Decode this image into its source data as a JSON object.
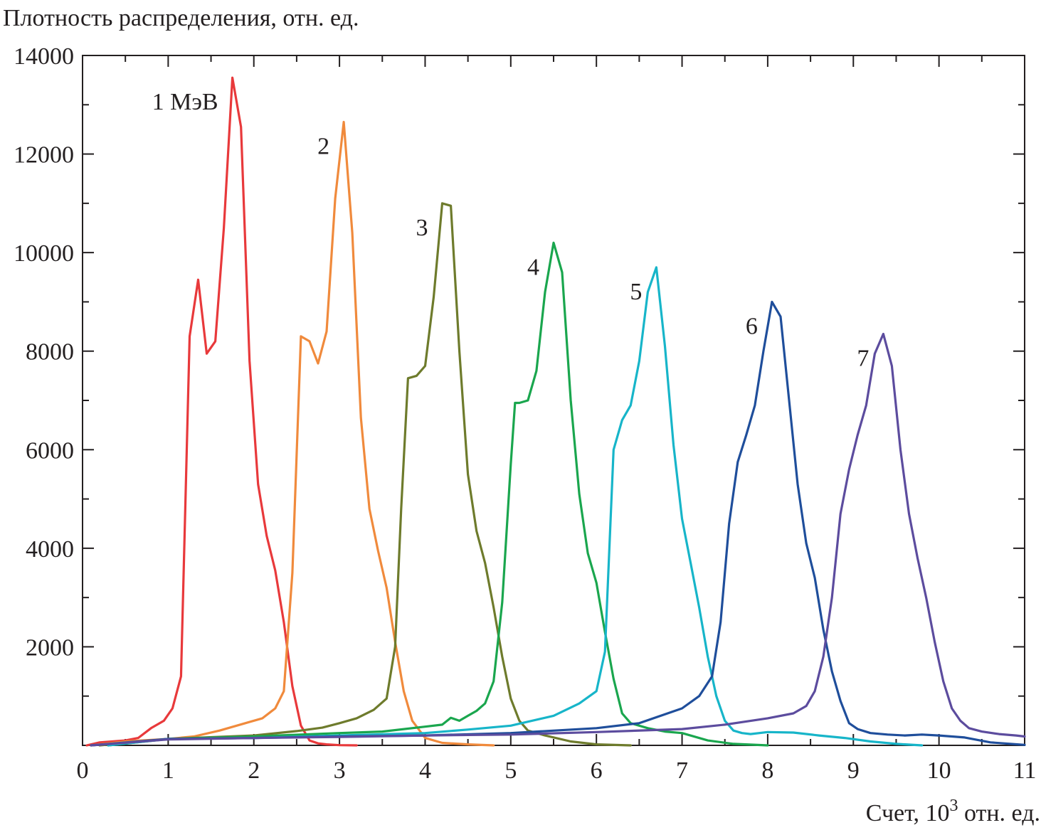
{
  "chart_data": {
    "type": "line",
    "title": "",
    "ylabel": "Плотность распределения, отн. ед.",
    "xlabel_prefix": "Счет, 10",
    "xlabel_exponent": "3",
    "xlabel_suffix": " отн. ед.",
    "xlim": [
      0,
      11
    ],
    "ylim": [
      0,
      14000
    ],
    "x_ticks": [
      "0",
      "1",
      "2",
      "3",
      "4",
      "5",
      "6",
      "7",
      "8",
      "9",
      "10",
      "11"
    ],
    "y_ticks": [
      "2000",
      "4000",
      "6000",
      "8000",
      "10000",
      "12000",
      "14000"
    ],
    "grid": false,
    "series": [
      {
        "name": "1 МэВ",
        "color": "#e8393b",
        "x": [
          0.05,
          0.2,
          0.35,
          0.5,
          0.65,
          0.8,
          0.95,
          1.05,
          1.15,
          1.25,
          1.35,
          1.45,
          1.55,
          1.65,
          1.75,
          1.85,
          1.95,
          2.05,
          2.15,
          2.25,
          2.35,
          2.45,
          2.55,
          2.65,
          2.75,
          2.85,
          3.0,
          3.2
        ],
        "values": [
          0,
          60,
          80,
          100,
          150,
          350,
          500,
          750,
          1400,
          8300,
          9450,
          7950,
          8200,
          10500,
          13550,
          12550,
          7800,
          5300,
          4250,
          3550,
          2500,
          1200,
          400,
          100,
          40,
          20,
          5,
          0
        ]
      },
      {
        "name": "2",
        "color": "#f08a3c",
        "x": [
          0.1,
          0.5,
          1.0,
          1.3,
          1.6,
          1.9,
          2.1,
          2.25,
          2.35,
          2.45,
          2.55,
          2.65,
          2.75,
          2.85,
          2.95,
          3.05,
          3.15,
          3.25,
          3.35,
          3.45,
          3.55,
          3.65,
          3.75,
          3.85,
          4.0,
          4.2,
          4.5,
          4.8
        ],
        "values": [
          0,
          80,
          130,
          180,
          300,
          450,
          550,
          750,
          1100,
          3500,
          8300,
          8200,
          7750,
          8400,
          11100,
          12650,
          10400,
          6650,
          4800,
          3950,
          3200,
          2100,
          1100,
          500,
          150,
          50,
          20,
          0
        ]
      },
      {
        "name": "3",
        "color": "#6e7b2c",
        "x": [
          0.2,
          1.0,
          2.0,
          2.5,
          2.8,
          3.0,
          3.2,
          3.4,
          3.55,
          3.65,
          3.72,
          3.8,
          3.9,
          4.0,
          4.1,
          4.2,
          4.3,
          4.4,
          4.5,
          4.6,
          4.7,
          4.8,
          4.9,
          5.0,
          5.1,
          5.2,
          5.4,
          5.7,
          6.0,
          6.4
        ],
        "values": [
          0,
          130,
          200,
          290,
          360,
          450,
          550,
          720,
          950,
          2000,
          4800,
          7450,
          7500,
          7700,
          9100,
          11000,
          10950,
          8000,
          5500,
          4350,
          3700,
          2800,
          1800,
          950,
          500,
          300,
          200,
          80,
          20,
          0
        ]
      },
      {
        "name": "4",
        "color": "#1aa64e",
        "x": [
          0.3,
          1.0,
          2.0,
          3.0,
          3.5,
          4.0,
          4.2,
          4.3,
          4.4,
          4.5,
          4.6,
          4.7,
          4.8,
          4.9,
          5.0,
          5.05,
          5.1,
          5.2,
          5.3,
          5.4,
          5.5,
          5.6,
          5.7,
          5.8,
          5.9,
          6.0,
          6.1,
          6.2,
          6.3,
          6.4,
          6.6,
          6.8,
          7.0,
          7.3,
          7.6,
          8.0
        ],
        "values": [
          0,
          130,
          180,
          250,
          280,
          380,
          420,
          560,
          500,
          600,
          700,
          850,
          1300,
          2900,
          5700,
          6950,
          6950,
          7000,
          7600,
          9200,
          10200,
          9600,
          7000,
          5100,
          3900,
          3300,
          2300,
          1350,
          650,
          450,
          350,
          280,
          250,
          100,
          30,
          0
        ]
      },
      {
        "name": "5",
        "color": "#17b5c9",
        "x": [
          0.3,
          1.0,
          2.0,
          3.0,
          4.0,
          4.5,
          5.0,
          5.5,
          5.8,
          6.0,
          6.1,
          6.2,
          6.3,
          6.4,
          6.5,
          6.6,
          6.7,
          6.8,
          6.9,
          7.0,
          7.1,
          7.2,
          7.3,
          7.4,
          7.5,
          7.6,
          7.7,
          7.8,
          8.0,
          8.3,
          8.6,
          8.9,
          9.2,
          9.5,
          9.8
        ],
        "values": [
          0,
          130,
          150,
          200,
          250,
          320,
          400,
          600,
          850,
          1100,
          1900,
          6000,
          6600,
          6900,
          7800,
          9200,
          9700,
          8100,
          6100,
          4600,
          3700,
          2800,
          1800,
          1000,
          500,
          300,
          250,
          230,
          270,
          260,
          200,
          150,
          80,
          30,
          0
        ]
      },
      {
        "name": "6",
        "color": "#1f4e9b",
        "x": [
          0.1,
          1.0,
          2.0,
          3.0,
          4.0,
          5.0,
          6.0,
          6.5,
          7.0,
          7.2,
          7.35,
          7.45,
          7.55,
          7.65,
          7.75,
          7.85,
          7.95,
          8.05,
          8.15,
          8.25,
          8.35,
          8.45,
          8.55,
          8.65,
          8.75,
          8.85,
          8.95,
          9.05,
          9.2,
          9.4,
          9.6,
          9.8,
          10.0,
          10.3,
          10.6,
          11.0
        ],
        "values": [
          0,
          130,
          150,
          180,
          200,
          250,
          350,
          450,
          750,
          1000,
          1400,
          2500,
          4500,
          5750,
          6300,
          6900,
          8000,
          9000,
          8700,
          7000,
          5300,
          4100,
          3400,
          2350,
          1500,
          900,
          450,
          330,
          250,
          220,
          200,
          220,
          200,
          160,
          60,
          10
        ]
      },
      {
        "name": "7",
        "color": "#5c4c9e",
        "x": [
          0.1,
          1.0,
          2.0,
          3.0,
          4.0,
          5.0,
          6.0,
          7.0,
          7.5,
          8.0,
          8.3,
          8.45,
          8.55,
          8.65,
          8.75,
          8.85,
          8.95,
          9.05,
          9.15,
          9.25,
          9.35,
          9.45,
          9.55,
          9.65,
          9.75,
          9.85,
          9.95,
          10.05,
          10.15,
          10.25,
          10.35,
          10.5,
          10.7,
          10.9,
          11.0
        ],
        "values": [
          0,
          120,
          150,
          170,
          200,
          220,
          270,
          330,
          420,
          550,
          650,
          800,
          1100,
          1800,
          3000,
          4700,
          5600,
          6300,
          6900,
          7950,
          8350,
          7700,
          6000,
          4700,
          3800,
          3000,
          2100,
          1300,
          750,
          500,
          350,
          280,
          230,
          200,
          180
        ]
      }
    ]
  }
}
